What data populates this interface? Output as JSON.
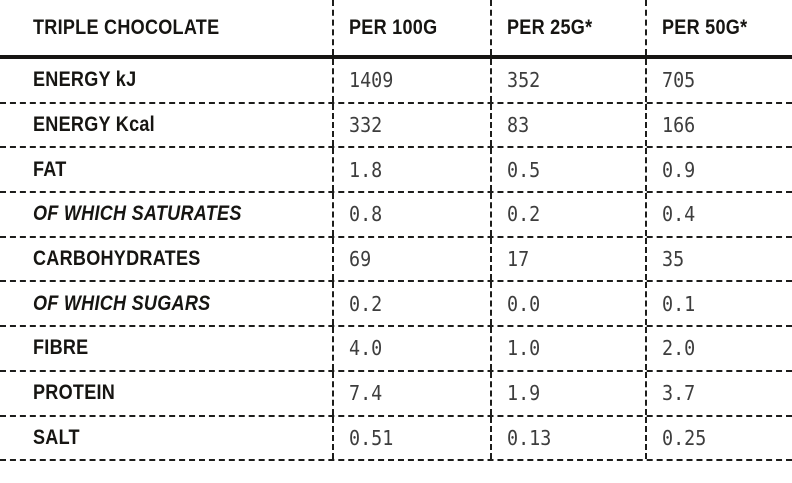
{
  "chart_data": {
    "type": "table",
    "title": "TRIPLE CHOCOLATE",
    "columns": [
      "TRIPLE CHOCOLATE",
      "PER 100G",
      "PER 25G*",
      "PER 50G*"
    ],
    "rows": [
      {
        "label": "ENERGY kJ",
        "per_100g": "1409",
        "per_25g": "352",
        "per_50g": "705",
        "style": "bold"
      },
      {
        "label": "ENERGY Kcal",
        "per_100g": "332",
        "per_25g": "83",
        "per_50g": "166",
        "style": "bold"
      },
      {
        "label": "FAT",
        "per_100g": "1.8",
        "per_25g": "0.5",
        "per_50g": "0.9",
        "style": "bold"
      },
      {
        "label": "OF WHICH SATURATES",
        "per_100g": "0.8",
        "per_25g": "0.2",
        "per_50g": "0.4",
        "style": "bold-italic"
      },
      {
        "label": "CARBOHYDRATES",
        "per_100g": "69",
        "per_25g": "17",
        "per_50g": "35",
        "style": "bold"
      },
      {
        "label": "OF WHICH SUGARS",
        "per_100g": "0.2",
        "per_25g": "0.0",
        "per_50g": "0.1",
        "style": "bold-italic"
      },
      {
        "label": "FIBRE",
        "per_100g": "4.0",
        "per_25g": "1.0",
        "per_50g": "2.0",
        "style": "bold"
      },
      {
        "label": "PROTEIN",
        "per_100g": "7.4",
        "per_25g": "1.9",
        "per_50g": "3.7",
        "style": "bold"
      },
      {
        "label": "SALT",
        "per_100g": "0.51",
        "per_25g": "0.13",
        "per_50g": "0.25",
        "style": "bold"
      }
    ],
    "layout": {
      "grid": "dashed",
      "header_rule": "thick-solid",
      "outer_border": "none",
      "legend_position": "none"
    },
    "colors": {
      "background": "#ffffff",
      "label_text": "#161512",
      "value_text": "#3d3d3d",
      "grid_line": "#1d1d1b"
    }
  }
}
